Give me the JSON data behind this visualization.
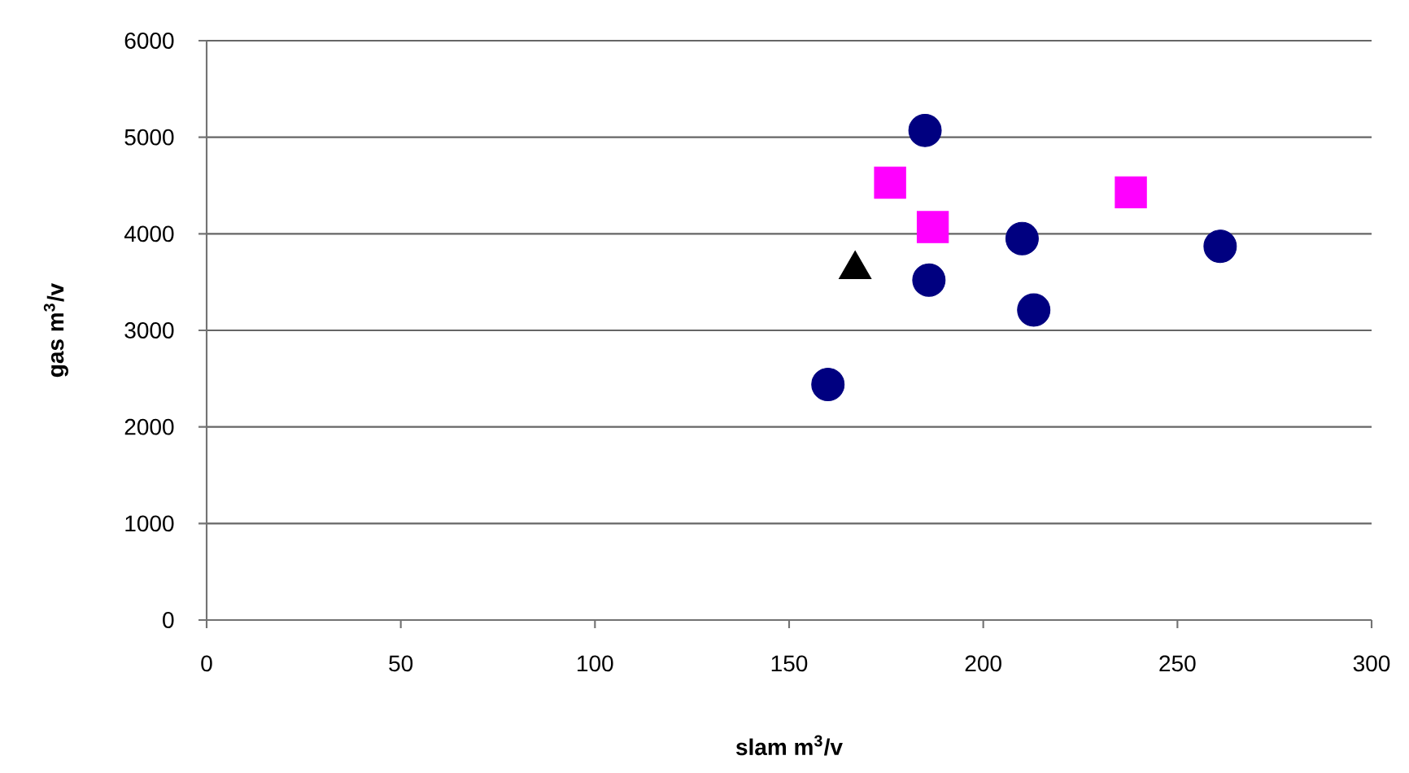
{
  "chart_data": {
    "type": "scatter",
    "xlabel": "slam m$^{3}$/v",
    "ylabel": "gas m$^{3}$/v",
    "xlim": [
      0,
      300
    ],
    "xticks": [
      0,
      50,
      100,
      150,
      200,
      250,
      300
    ],
    "ylim": [
      0,
      6000
    ],
    "yticks": [
      0,
      1000,
      2000,
      3000,
      4000,
      5000,
      6000
    ],
    "grid": "y",
    "series": [
      {
        "color": "#000080",
        "marker": "circle",
        "x": [
          160,
          185,
          186,
          210,
          213,
          261
        ],
        "values": [
          2440,
          5070,
          3520,
          3950,
          3210,
          3870
        ]
      },
      {
        "color": "#ff00ff",
        "marker": "square",
        "x": [
          176,
          187,
          238
        ],
        "values": [
          4530,
          4070,
          4430
        ]
      },
      {
        "color": "#000000",
        "marker": "triangle",
        "x": [
          167
        ],
        "values": [
          3630
        ]
      }
    ]
  }
}
